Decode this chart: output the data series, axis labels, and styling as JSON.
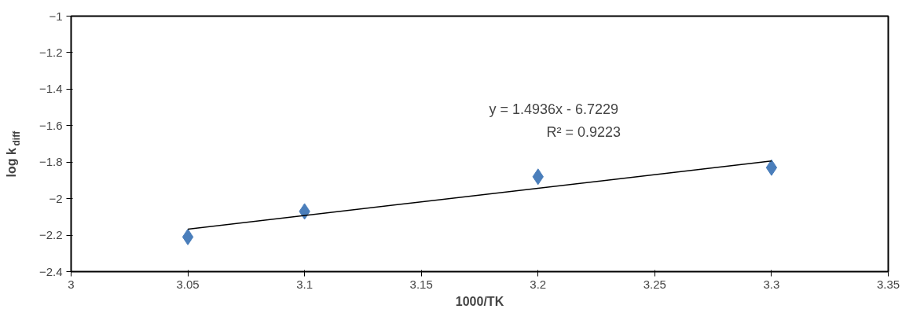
{
  "chart_data": {
    "type": "scatter",
    "xlabel": "1000/TK",
    "ylabel": "log k$_{diff}$",
    "xlim": [
      3,
      3.35
    ],
    "xticks": [
      3,
      3.05,
      3.1,
      3.15,
      3.2,
      3.25,
      3.3,
      3.35
    ],
    "ylim": [
      -2.4,
      -1
    ],
    "yticks": [
      -2.4,
      -2.2,
      -2,
      -1.8,
      -1.6,
      -1.4,
      -1.2,
      -1
    ],
    "grid": false,
    "series": [
      {
        "type": "scatter",
        "color": "#4a7ebb",
        "marker": "diamond",
        "x": [
          3.05,
          3.1,
          3.2,
          3.3
        ],
        "values": [
          -2.21,
          -2.07,
          -1.88,
          -1.83
        ]
      },
      {
        "type": "line",
        "color": "#000000",
        "marker": "none",
        "line_style": "solid",
        "x": [
          3.05,
          3.3
        ],
        "values": [
          -2.167,
          -1.794
        ]
      }
    ],
    "annotations": [
      "y = 1.4936x - 6.7229",
      "R² = 0.9223"
    ]
  }
}
